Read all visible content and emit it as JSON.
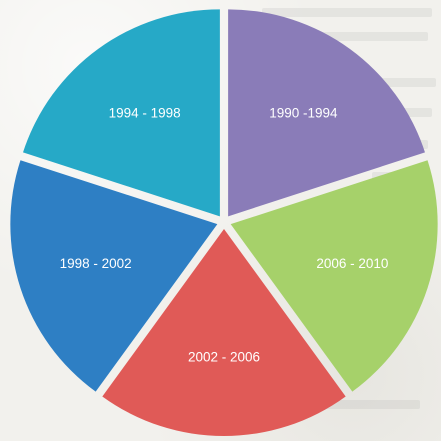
{
  "chart_data": {
    "type": "pie",
    "title": "",
    "labels": [
      "1994 - 1998",
      "1998 - 2002",
      "2002 - 2006",
      "2006 - 2010",
      "1990 -1994"
    ],
    "values": [
      1,
      1,
      1,
      1,
      1
    ],
    "colors": [
      "#26a9c7",
      "#2e7fc4",
      "#e05a57",
      "#a6d16a",
      "#8a7cb8"
    ],
    "legend": "none",
    "slice_labels_on_chart": true,
    "exploded": true
  }
}
